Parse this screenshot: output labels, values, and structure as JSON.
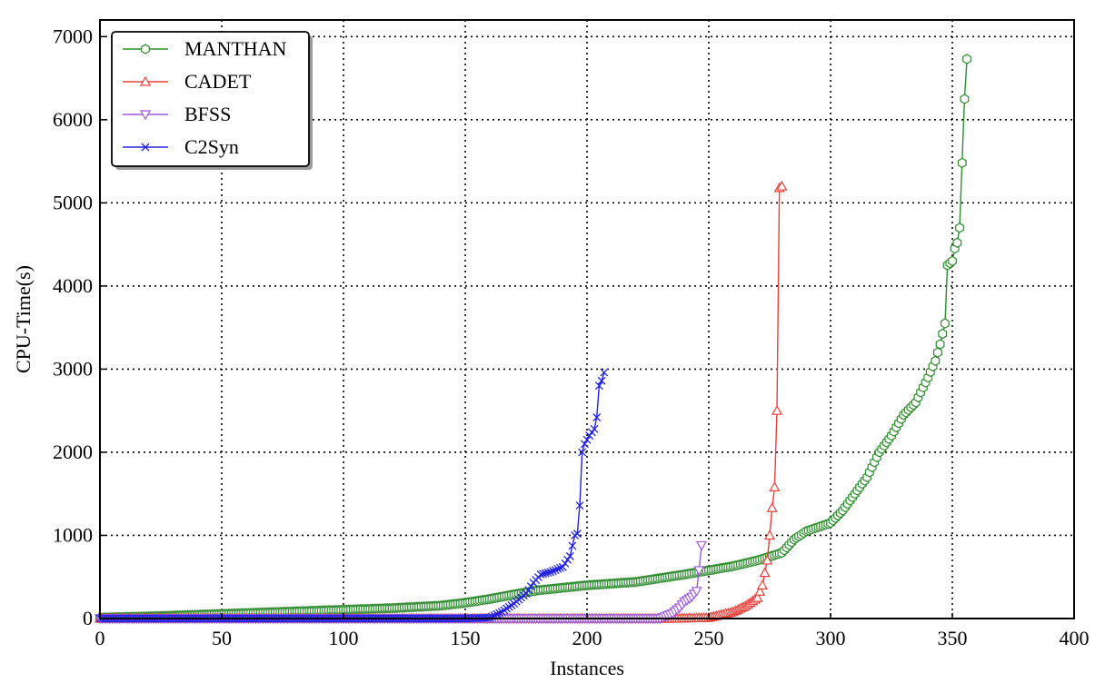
{
  "chart_data": {
    "type": "line",
    "title": "",
    "xlabel": "Instances",
    "ylabel": "CPU-Time(s)",
    "xlim": [
      0,
      400
    ],
    "ylim": [
      0,
      7200
    ],
    "xticks": [
      0,
      50,
      100,
      150,
      200,
      250,
      300,
      350,
      400
    ],
    "yticks": [
      0,
      1000,
      2000,
      3000,
      4000,
      5000,
      6000,
      7000
    ],
    "grid": true,
    "legend_position": "top-left",
    "series": [
      {
        "name": "MANTHAN",
        "color": "#2e8b2e",
        "marker": "hexagon",
        "points": [
          [
            0,
            10
          ],
          [
            20,
            25
          ],
          [
            40,
            45
          ],
          [
            60,
            65
          ],
          [
            80,
            85
          ],
          [
            100,
            105
          ],
          [
            120,
            125
          ],
          [
            140,
            155
          ],
          [
            150,
            190
          ],
          [
            160,
            235
          ],
          [
            170,
            290
          ],
          [
            180,
            340
          ],
          [
            190,
            370
          ],
          [
            200,
            400
          ],
          [
            220,
            440
          ],
          [
            240,
            530
          ],
          [
            250,
            580
          ],
          [
            260,
            630
          ],
          [
            270,
            700
          ],
          [
            280,
            790
          ],
          [
            285,
            950
          ],
          [
            290,
            1050
          ],
          [
            295,
            1100
          ],
          [
            300,
            1150
          ],
          [
            305,
            1300
          ],
          [
            310,
            1500
          ],
          [
            315,
            1700
          ],
          [
            320,
            2000
          ],
          [
            325,
            2200
          ],
          [
            330,
            2450
          ],
          [
            335,
            2600
          ],
          [
            340,
            2900
          ],
          [
            343,
            3100
          ],
          [
            345,
            3300
          ],
          [
            347,
            3550
          ],
          [
            348,
            4250
          ],
          [
            350,
            4300
          ],
          [
            351,
            4450
          ],
          [
            352,
            4520
          ],
          [
            353,
            4700
          ],
          [
            354,
            5480
          ],
          [
            355,
            6250
          ],
          [
            356,
            6730
          ]
        ]
      },
      {
        "name": "CADET",
        "color": "#e8403a",
        "marker": "triangle-up",
        "points": [
          [
            0,
            0
          ],
          [
            235,
            0
          ],
          [
            250,
            10
          ],
          [
            260,
            80
          ],
          [
            265,
            150
          ],
          [
            270,
            250
          ],
          [
            272,
            400
          ],
          [
            274,
            700
          ],
          [
            275,
            1000
          ],
          [
            276,
            1330
          ],
          [
            277,
            1580
          ],
          [
            278,
            2500
          ],
          [
            279,
            5180
          ],
          [
            280,
            5200
          ]
        ]
      },
      {
        "name": "BFSS",
        "color": "#9b59d6",
        "marker": "triangle-down",
        "points": [
          [
            0,
            0
          ],
          [
            230,
            0
          ],
          [
            235,
            60
          ],
          [
            238,
            130
          ],
          [
            240,
            200
          ],
          [
            243,
            260
          ],
          [
            245,
            330
          ],
          [
            246,
            580
          ],
          [
            247,
            880
          ]
        ]
      },
      {
        "name": "C2Syn",
        "color": "#2323e0",
        "marker": "x",
        "points": [
          [
            0,
            0
          ],
          [
            150,
            0
          ],
          [
            160,
            10
          ],
          [
            165,
            80
          ],
          [
            170,
            180
          ],
          [
            175,
            300
          ],
          [
            178,
            430
          ],
          [
            181,
            530
          ],
          [
            185,
            560
          ],
          [
            190,
            620
          ],
          [
            193,
            750
          ],
          [
            195,
            1000
          ],
          [
            196,
            1020
          ],
          [
            197,
            1360
          ],
          [
            198,
            2000
          ],
          [
            199,
            2100
          ],
          [
            201,
            2200
          ],
          [
            203,
            2280
          ],
          [
            204,
            2420
          ],
          [
            205,
            2800
          ],
          [
            206,
            2860
          ],
          [
            207,
            2960
          ]
        ]
      }
    ]
  }
}
